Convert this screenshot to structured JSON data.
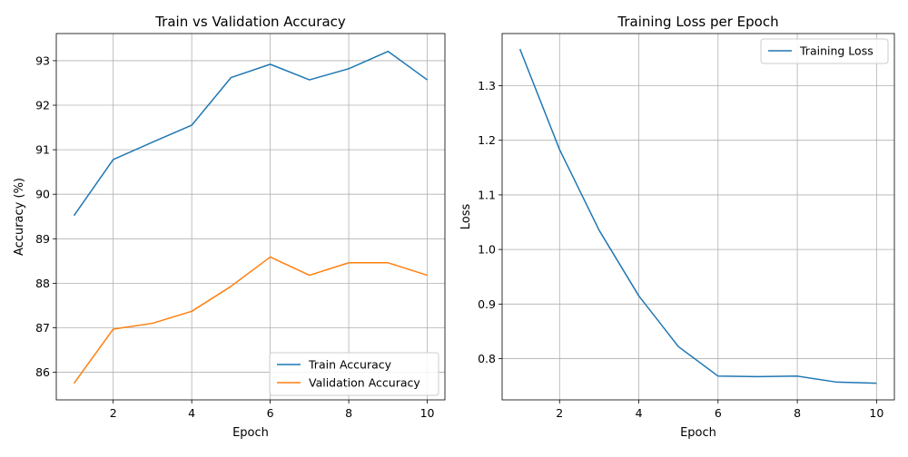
{
  "chart_data": [
    {
      "type": "line",
      "title": "Train vs Validation Accuracy",
      "xlabel": "Epoch",
      "ylabel": "Accuracy (%)",
      "x": [
        1,
        2,
        3,
        4,
        5,
        6,
        7,
        8,
        9,
        10
      ],
      "xlim": [
        0.55,
        10.45
      ],
      "ylim": [
        85.38,
        93.61
      ],
      "xticks": [
        2,
        4,
        6,
        8,
        10
      ],
      "yticks": [
        86,
        87,
        88,
        89,
        90,
        91,
        92,
        93
      ],
      "grid": true,
      "legend_position": "lower-right",
      "series": [
        {
          "name": "Train Accuracy",
          "color": "#1f77b4",
          "values": [
            89.52,
            90.78,
            91.17,
            91.55,
            92.62,
            92.92,
            92.57,
            92.82,
            93.21,
            92.57
          ]
        },
        {
          "name": "Validation Accuracy",
          "color": "#ff7f0e",
          "values": [
            85.75,
            86.97,
            87.1,
            87.37,
            87.93,
            88.59,
            88.18,
            88.46,
            88.46,
            88.18
          ]
        }
      ]
    },
    {
      "type": "line",
      "title": "Training Loss per Epoch",
      "xlabel": "Epoch",
      "ylabel": "Loss",
      "x": [
        1,
        2,
        3,
        4,
        5,
        6,
        7,
        8,
        9,
        10
      ],
      "xlim": [
        0.55,
        10.45
      ],
      "ylim": [
        0.7245,
        1.3955
      ],
      "xticks": [
        2,
        4,
        6,
        8,
        10
      ],
      "yticks": [
        0.8,
        0.9,
        1.0,
        1.1,
        1.2,
        1.3
      ],
      "ytick_labels": [
        "0.8",
        "0.9",
        "1.0",
        "1.1",
        "1.2",
        "1.3"
      ],
      "grid": true,
      "legend_position": "upper-right",
      "series": [
        {
          "name": "Training Loss",
          "color": "#1f77b4",
          "values": [
            1.367,
            1.183,
            1.035,
            0.915,
            0.822,
            0.768,
            0.767,
            0.768,
            0.757,
            0.755
          ]
        }
      ]
    }
  ]
}
